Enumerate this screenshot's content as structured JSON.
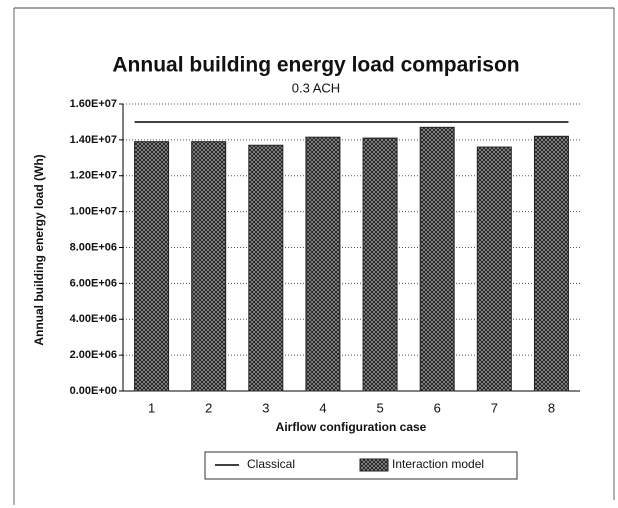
{
  "chart_data": {
    "type": "bar",
    "title": "Annual building energy load comparison",
    "subtitle": "0.3 ACH",
    "x_label": "Airflow configuration case",
    "y_label": "Annual building energy load (Wh)",
    "categories": [
      "1",
      "2",
      "3",
      "4",
      "5",
      "6",
      "7",
      "8"
    ],
    "series": [
      {
        "name": "Classical",
        "type": "line",
        "color": "#000000",
        "values": [
          15000000,
          15000000,
          15000000,
          15000000,
          15000000,
          15000000,
          15000000,
          15000000
        ]
      },
      {
        "name": "Interaction model",
        "type": "bar",
        "color": "#555555",
        "values": [
          13900000,
          13900000,
          13700000,
          14150000,
          14100000,
          14700000,
          13600000,
          14200000
        ]
      }
    ],
    "ylim": [
      0,
      16000000
    ],
    "yticks": [
      {
        "value": 0,
        "label": "0.00E+00"
      },
      {
        "value": 2000000,
        "label": "2.00E+06"
      },
      {
        "value": 4000000,
        "label": "4.00E+06"
      },
      {
        "value": 6000000,
        "label": "6.00E+06"
      },
      {
        "value": 8000000,
        "label": "8.00E+06"
      },
      {
        "value": 10000000,
        "label": "1.00E+07"
      },
      {
        "value": 12000000,
        "label": "1.20E+07"
      },
      {
        "value": 14000000,
        "label": "1.40E+07"
      },
      {
        "value": 16000000,
        "label": "1.60E+07"
      }
    ],
    "grid": true,
    "legend": "bottom"
  }
}
